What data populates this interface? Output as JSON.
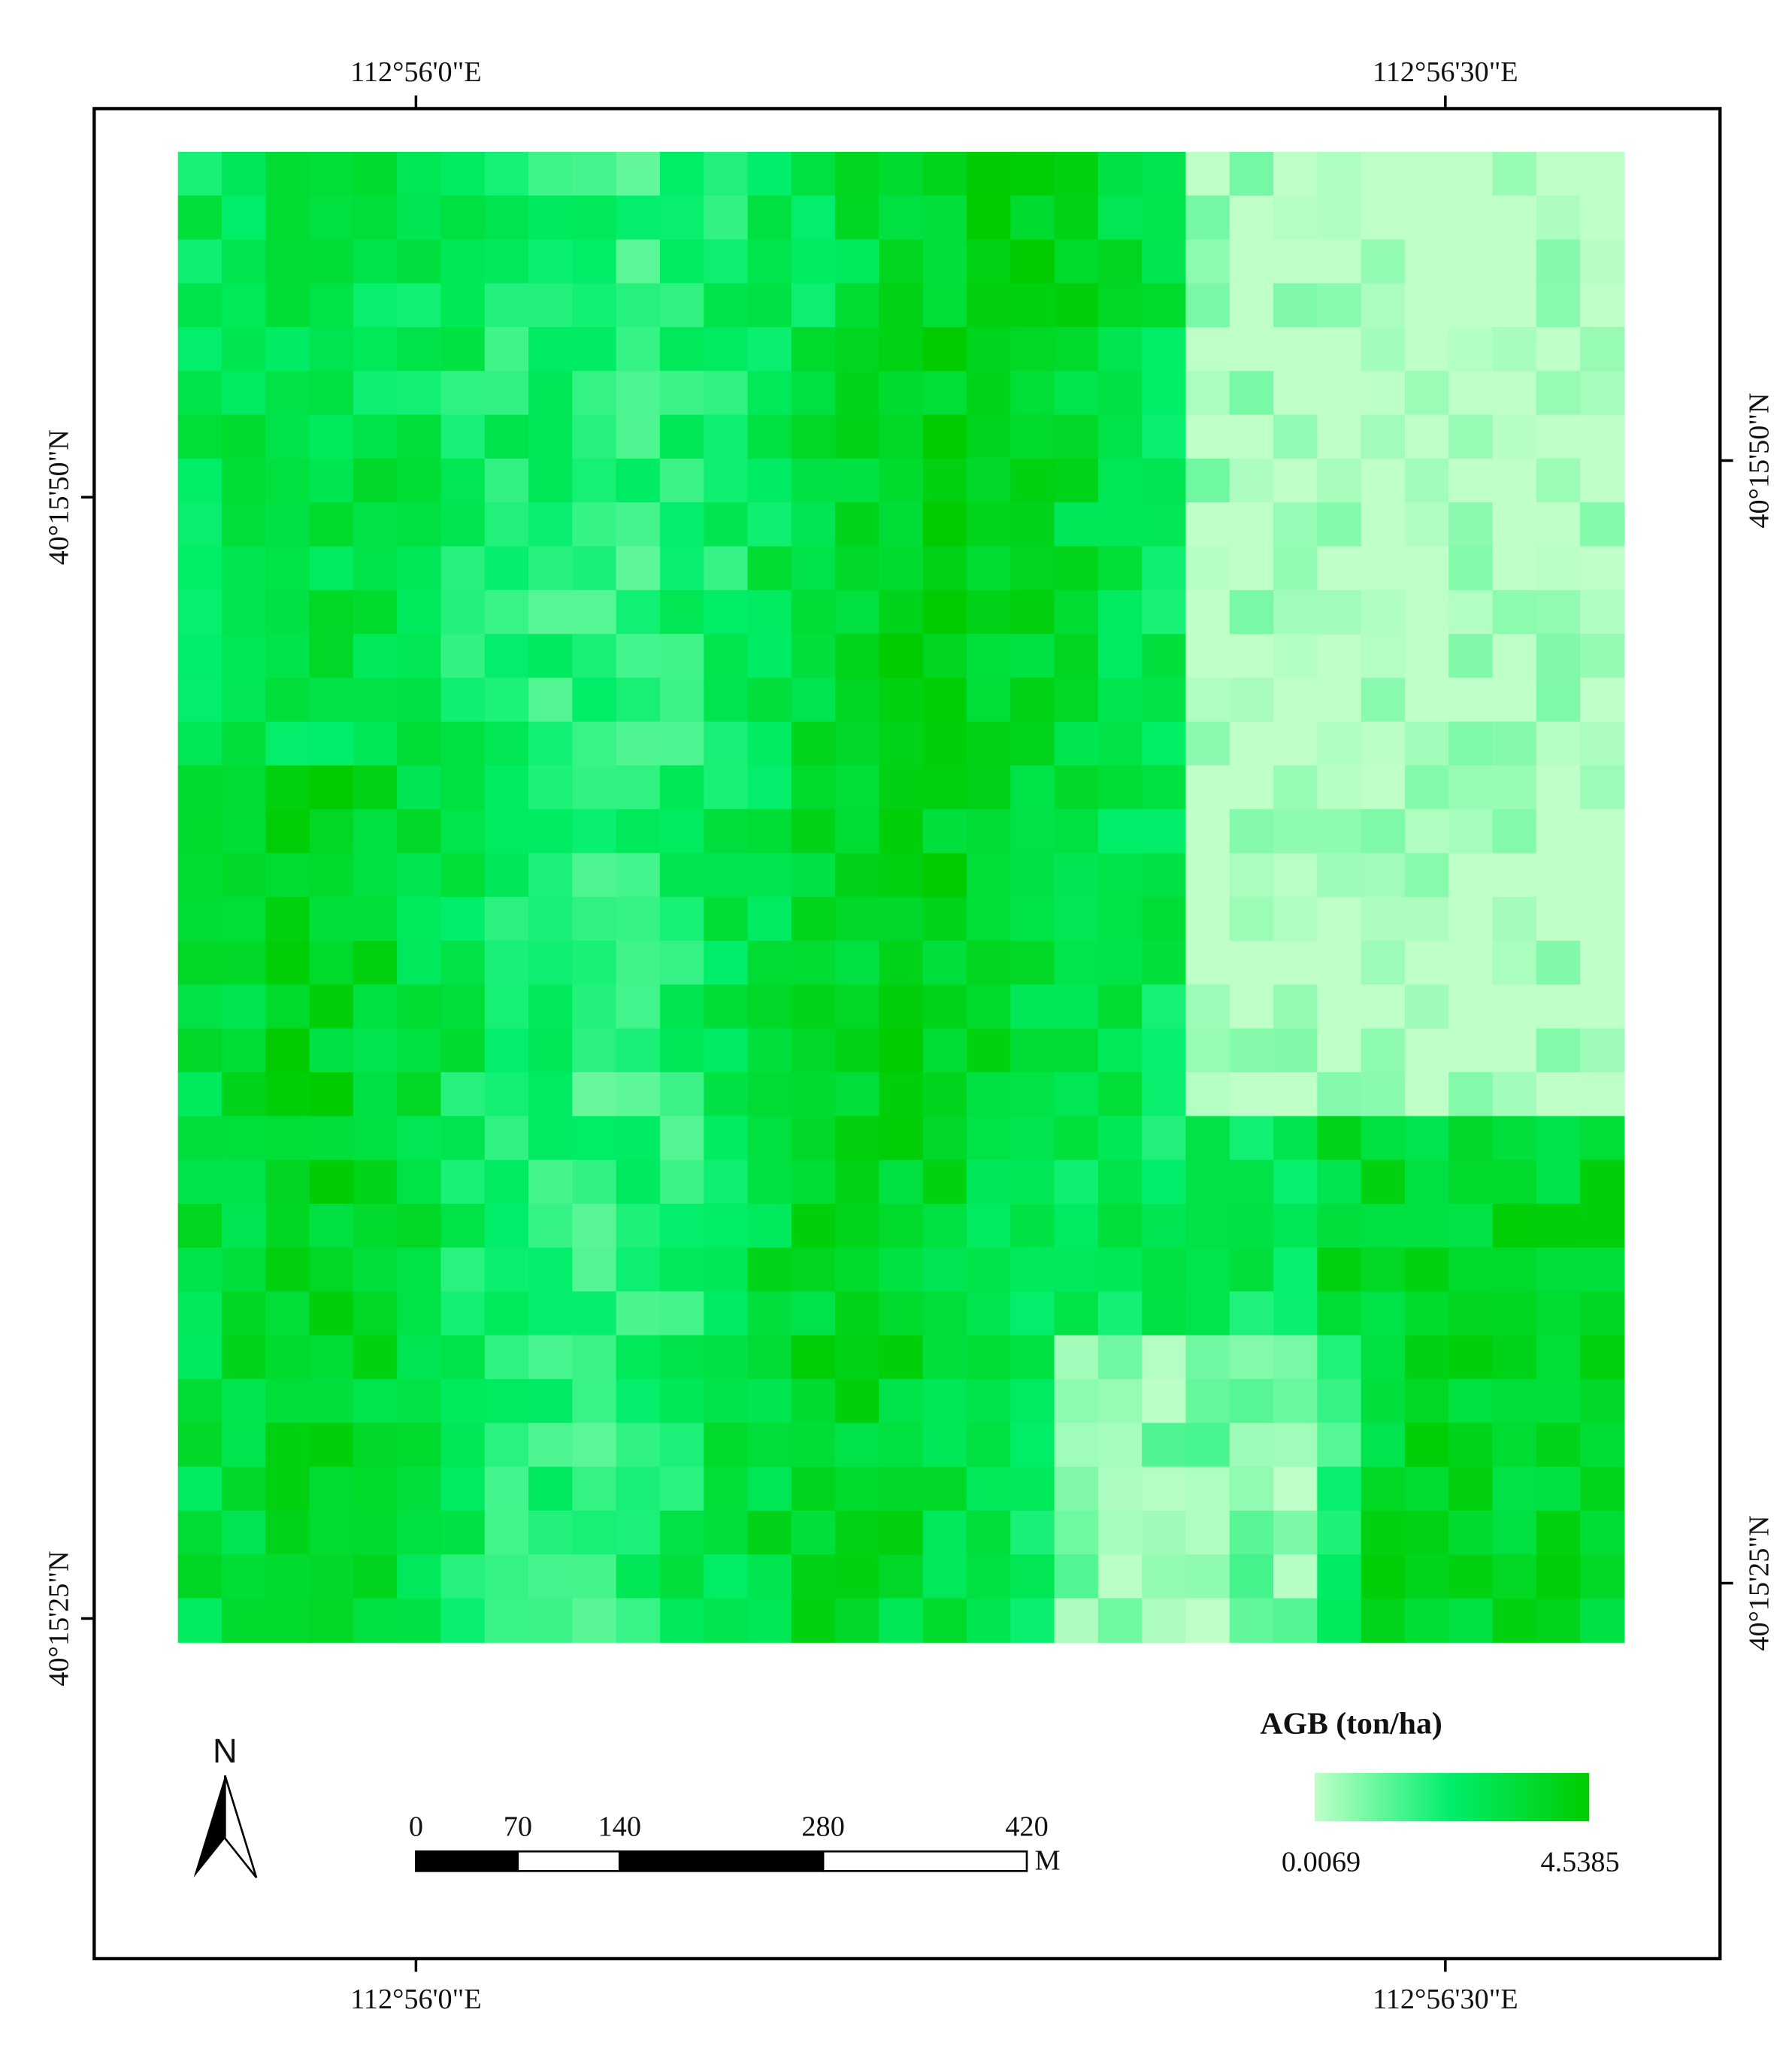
{
  "map": {
    "longitude_labels": [
      "112°56'0\"E",
      "112°56'30\"E"
    ],
    "latitude_labels": [
      "40°15'50\"N",
      "40°15'25\"N"
    ],
    "north_label": "N",
    "scale_bar": {
      "ticks": [
        0,
        70,
        140,
        280,
        420
      ],
      "unit": "M"
    },
    "legend": {
      "title": "AGB (ton/ha)",
      "min": 0.0069,
      "max": 4.5385,
      "colors": [
        "#bfffc8",
        "#00ee6a",
        "#00cc00"
      ]
    }
  }
}
